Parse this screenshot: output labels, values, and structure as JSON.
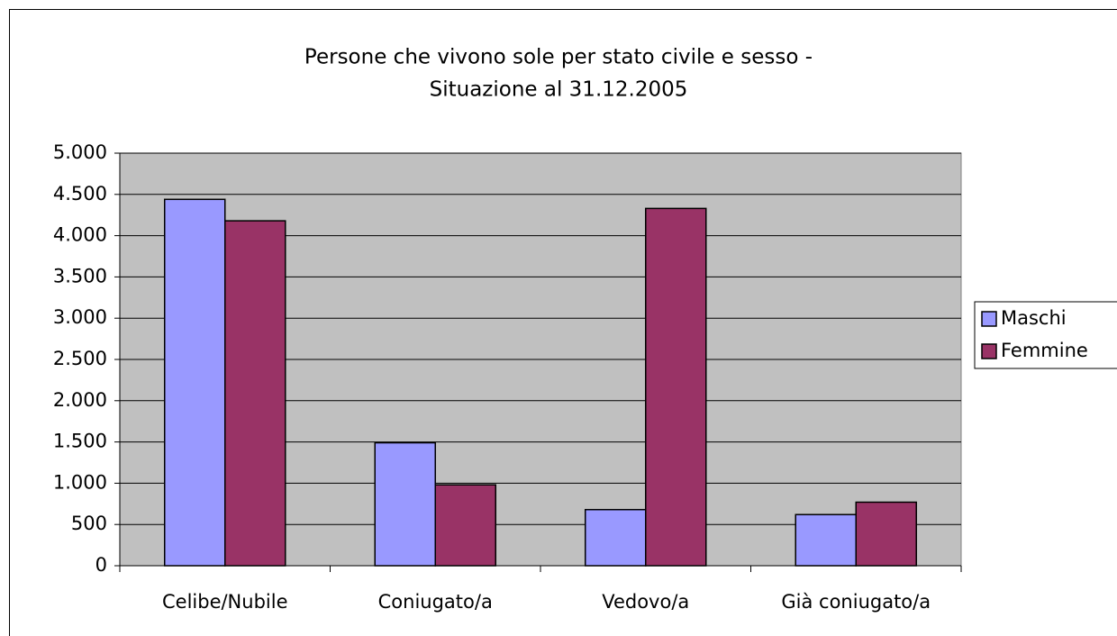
{
  "chart_data": {
    "type": "bar",
    "title": [
      "Persone che vivono sole per stato civile e sesso -",
      "Situazione al 31.12.2005"
    ],
    "categories": [
      "Celibe/Nubile",
      "Coniugato/a",
      "Vedovo/a",
      "Già coniugato/a"
    ],
    "series": [
      {
        "name": "Maschi",
        "color": "#9999ff",
        "values": [
          4440,
          1490,
          680,
          620
        ]
      },
      {
        "name": "Femmine",
        "color": "#993366",
        "values": [
          4180,
          980,
          4330,
          770
        ]
      }
    ],
    "ylim": [
      0,
      5000
    ],
    "yticks": [
      0,
      500,
      {
        "value": 1000,
        "label": "1.000"
      },
      {
        "value": 1500,
        "label": "1.500"
      },
      {
        "value": 2000,
        "label": "2.000"
      },
      {
        "value": 2500,
        "label": "2.500"
      },
      {
        "value": 3000,
        "label": "3.000"
      },
      {
        "value": 3500,
        "label": "3.500"
      },
      {
        "value": 4000,
        "label": "4.000"
      },
      {
        "value": 4500,
        "label": "4.500"
      },
      {
        "value": 5000,
        "label": "5.000"
      }
    ],
    "grid": true,
    "legend": "right"
  }
}
